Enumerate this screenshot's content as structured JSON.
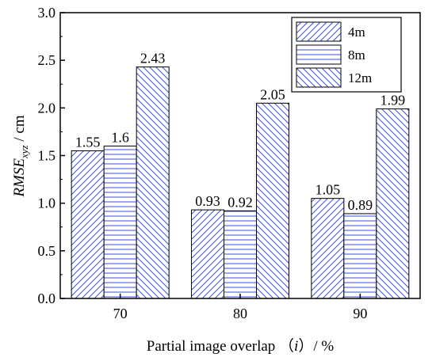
{
  "chart_data": {
    "type": "bar",
    "categories": [
      "70",
      "80",
      "90"
    ],
    "series": [
      {
        "name": "4m",
        "values": [
          1.55,
          0.93,
          1.05
        ],
        "labels": [
          "1.55",
          "0.93",
          "1.05"
        ],
        "pattern": "diagonal-forward"
      },
      {
        "name": "8m",
        "values": [
          1.6,
          0.92,
          0.89
        ],
        "labels": [
          "1.6",
          "0.92",
          "0.89"
        ],
        "pattern": "horizontal"
      },
      {
        "name": "12m",
        "values": [
          2.43,
          2.05,
          1.99
        ],
        "labels": [
          "2.43",
          "2.05",
          "1.99"
        ],
        "pattern": "diagonal-backward"
      }
    ],
    "xlabel": "Partial image overlap （i）/ %",
    "ylabel": "RMSE_xyz / cm",
    "ylim": [
      0,
      3.0
    ],
    "yticks": [
      "0.0",
      "0.5",
      "1.0",
      "1.5",
      "2.0",
      "2.5",
      "3.0"
    ],
    "legend_position": "top-right",
    "grid": false,
    "colors": {
      "hatch": "#3b4fd8",
      "axis": "#000000",
      "bar_border": "#000000"
    }
  }
}
